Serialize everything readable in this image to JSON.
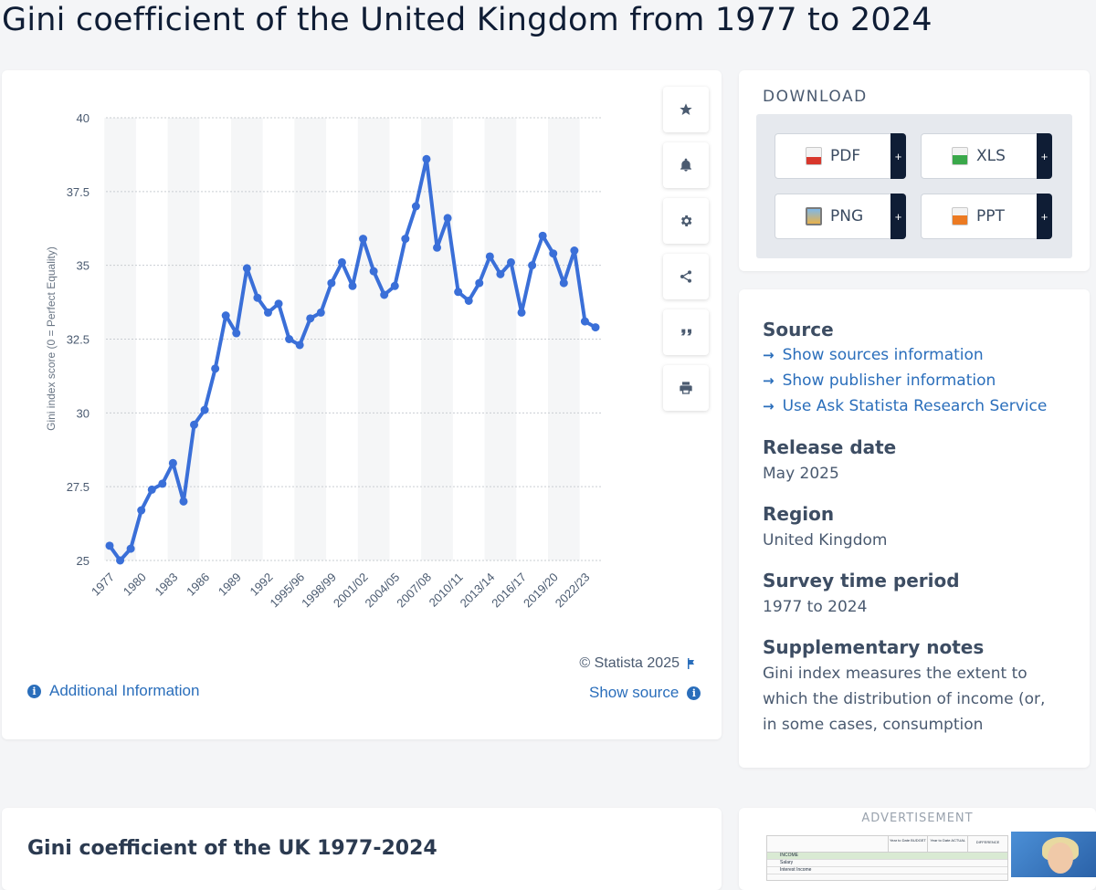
{
  "page_title": "Gini coefficient of the United Kingdom from 1977 to 2024",
  "chart_data": {
    "type": "line",
    "title": "",
    "xlabel": "",
    "ylabel": "Gini index score (0 = Perfect Equality)",
    "ylim": [
      25,
      40
    ],
    "yticks": [
      "25",
      "27.5",
      "30",
      "32.5",
      "35",
      "37.5",
      "40"
    ],
    "xtick_labels": [
      "1977",
      "1980",
      "1983",
      "1986",
      "1989",
      "1992",
      "1995/96",
      "1998/99",
      "2001/02",
      "2004/05",
      "2007/08",
      "2010/11",
      "2013/14",
      "2016/17",
      "2019/20",
      "2022/23"
    ],
    "series": [
      {
        "name": "Gini index score",
        "color": "#3a6fd8",
        "values": [
          25.5,
          25.0,
          25.4,
          26.7,
          27.4,
          27.6,
          28.3,
          27.0,
          29.6,
          30.1,
          31.5,
          33.3,
          32.7,
          34.9,
          33.9,
          33.4,
          33.7,
          32.5,
          32.3,
          33.2,
          33.4,
          34.4,
          35.1,
          34.3,
          35.9,
          34.8,
          34.0,
          34.3,
          35.9,
          37.0,
          38.6,
          35.6,
          36.6,
          34.1,
          33.8,
          34.4,
          35.3,
          34.7,
          35.1,
          33.4,
          35.0,
          36.0,
          35.4,
          34.4,
          35.5,
          33.1,
          32.9
        ]
      }
    ]
  },
  "chart_footer": {
    "copyright": "© Statista 2025",
    "additional_info": "Additional Information",
    "show_source": "Show source"
  },
  "tools": {
    "favorite": "star-icon",
    "alert": "bell-icon",
    "settings": "gear-icon",
    "share": "share-icon",
    "cite": "quote-icon",
    "print": "print-icon"
  },
  "download": {
    "title": "DOWNLOAD",
    "buttons": [
      {
        "label": "PDF",
        "plus": "+"
      },
      {
        "label": "XLS",
        "plus": "+"
      },
      {
        "label": "PNG",
        "plus": "+"
      },
      {
        "label": "PPT",
        "plus": "+"
      }
    ]
  },
  "source_panel": {
    "source_heading": "Source",
    "links": [
      "Show sources information",
      "Show publisher information",
      "Use Ask Statista Research Service"
    ],
    "release_heading": "Release date",
    "release_value": "May 2025",
    "region_heading": "Region",
    "region_value": "United Kingdom",
    "survey_heading": "Survey time period",
    "survey_value": "1977 to 2024",
    "notes_heading": "Supplementary notes",
    "notes_value": "Gini index measures the extent to which the distribution of income (or, in some cases, consumption"
  },
  "bottom": {
    "title": "Gini coefficient of the UK 1977-2024"
  },
  "ad": {
    "label": "ADVERTISEMENT",
    "sheet_headers": [
      "Year to Date BUDGET",
      "Year to Date ACTUAL",
      "DIFFERENCE"
    ],
    "sheet_rows": [
      "INCOME",
      "Salary",
      "Interest Income"
    ]
  }
}
